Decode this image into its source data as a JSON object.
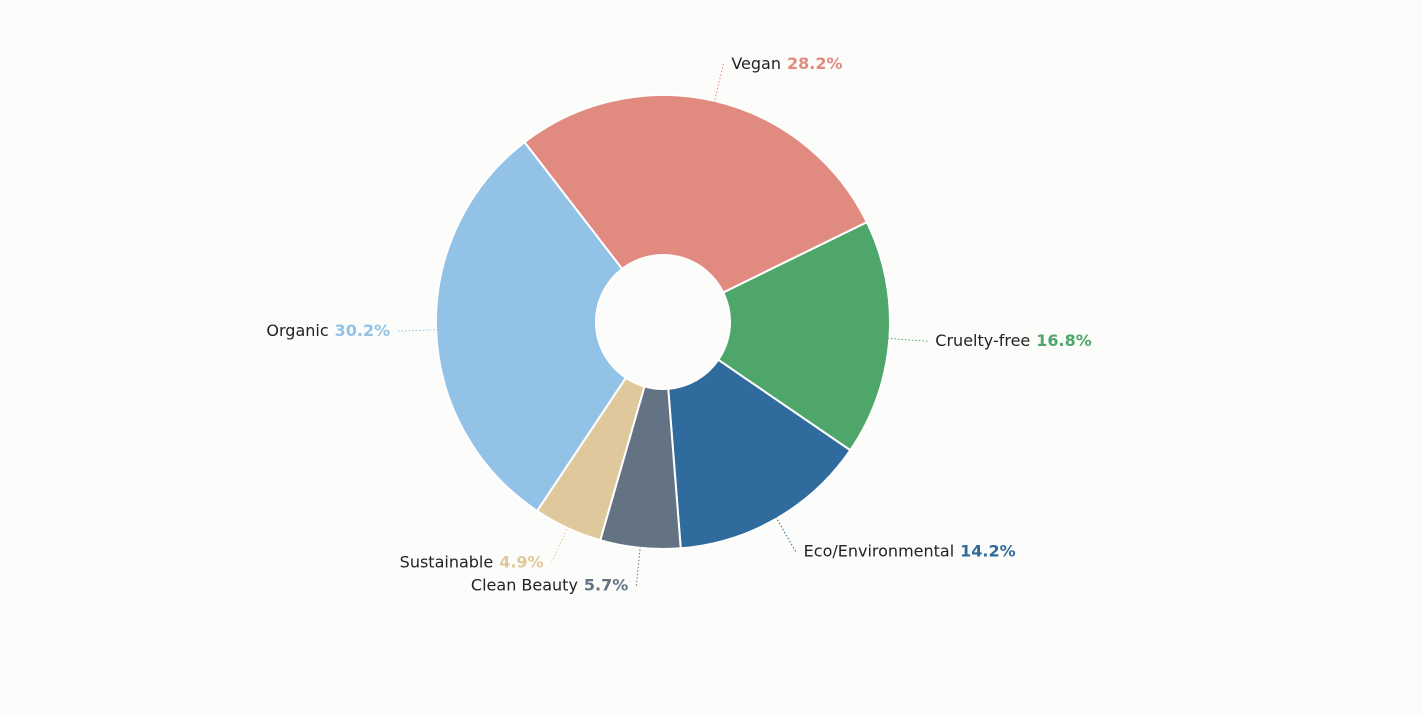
{
  "chart_data": {
    "type": "donut",
    "categories": [
      "Vegan",
      "Cruelty-free",
      "Eco/Environmental",
      "Clean Beauty",
      "Sustainable",
      "Organic"
    ],
    "values": [
      28.2,
      16.8,
      14.2,
      5.7,
      4.9,
      30.2
    ],
    "value_labels": [
      "28.2%",
      "16.8%",
      "14.2%",
      "5.7%",
      "4.9%",
      "30.2%"
    ],
    "colors": [
      "#e18b80",
      "#4fa66a",
      "#2f6b9c",
      "#637384",
      "#dfc89b",
      "#93c2e7"
    ]
  }
}
